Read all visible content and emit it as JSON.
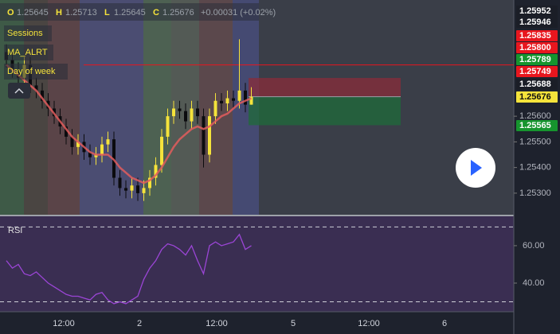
{
  "chart_data": {
    "type": "candlestick",
    "ylim": [
      1.25216,
      1.26053
    ],
    "yticks": [
      {
        "value": 1.253,
        "label": "1.25300"
      },
      {
        "value": 1.254,
        "label": "1.25400"
      },
      {
        "value": 1.255,
        "label": "1.25500"
      },
      {
        "value": 1.256,
        "label": "1.25600"
      }
    ],
    "up_color": "#f5e33b",
    "down_color": "#0b0b0e",
    "open": [
      1.2585,
      1.2582,
      1.2578,
      1.2575,
      1.258,
      1.2572,
      1.257,
      1.2566,
      1.2563,
      1.256,
      1.2556,
      1.2552,
      1.2548,
      1.255,
      1.2546,
      1.2544,
      1.2545,
      1.2549,
      1.2551,
      1.2536,
      1.2532,
      1.2531,
      1.2533,
      1.253,
      1.2532,
      1.2536,
      1.2541,
      1.2552,
      1.256,
      1.2563,
      1.2562,
      1.2558,
      1.2563,
      1.256,
      1.2545,
      1.256,
      1.2566,
      1.2565,
      1.2567,
      1.2566,
      1.257,
      1.25645
    ],
    "high": [
      1.2588,
      1.2585,
      1.2581,
      1.2583,
      1.2583,
      1.2575,
      1.2573,
      1.2569,
      1.2566,
      1.2563,
      1.2559,
      1.2555,
      1.2553,
      1.2553,
      1.2549,
      1.2548,
      1.2552,
      1.2554,
      1.2554,
      1.2539,
      1.2535,
      1.2536,
      1.2536,
      1.2535,
      1.2539,
      1.2544,
      1.2555,
      1.2563,
      1.2566,
      1.2566,
      1.2565,
      1.2566,
      1.2566,
      1.2563,
      1.2563,
      1.2569,
      1.2569,
      1.257,
      1.257,
      1.259,
      1.2573,
      1.25713
    ],
    "low": [
      1.2579,
      1.2575,
      1.2572,
      1.2572,
      1.2569,
      1.2567,
      1.2563,
      1.256,
      1.2557,
      1.2553,
      1.2549,
      1.2545,
      1.2545,
      1.2543,
      1.2541,
      1.2541,
      1.2542,
      1.2546,
      1.2533,
      1.2529,
      1.2528,
      1.2528,
      1.2527,
      1.2527,
      1.2529,
      1.2533,
      1.2538,
      1.2549,
      1.2557,
      1.2559,
      1.2555,
      1.2555,
      1.2557,
      1.254,
      1.2542,
      1.2557,
      1.2562,
      1.2562,
      1.2563,
      1.2563,
      1.25615,
      1.25645
    ],
    "close": [
      1.2582,
      1.2578,
      1.2575,
      1.258,
      1.2572,
      1.257,
      1.2566,
      1.2563,
      1.256,
      1.2556,
      1.2552,
      1.2548,
      1.255,
      1.2546,
      1.2544,
      1.2545,
      1.2549,
      1.2551,
      1.2536,
      1.2532,
      1.2531,
      1.2533,
      1.253,
      1.2532,
      1.2536,
      1.2541,
      1.2552,
      1.256,
      1.2563,
      1.2562,
      1.2558,
      1.2563,
      1.256,
      1.2545,
      1.256,
      1.2566,
      1.2565,
      1.2567,
      1.2566,
      1.257,
      1.25645,
      1.25676
    ],
    "legend_keys": [
      "O",
      "H",
      "L",
      "C"
    ],
    "change": "+0.00031 (+0.02%)",
    "overlays": [
      {
        "name": "MA_ALRT",
        "color": "#e35d5d",
        "values": [
          1.258,
          1.2578,
          1.2576,
          1.2574,
          1.2572,
          1.257,
          1.2567,
          1.2564,
          1.2561,
          1.2558,
          1.2555,
          1.2552,
          1.255,
          1.2548,
          1.2546,
          1.2545,
          1.2545,
          1.2545,
          1.2543,
          1.254,
          1.2538,
          1.2536,
          1.2535,
          1.2534,
          1.2535,
          1.2537,
          1.254,
          1.2544,
          1.2548,
          1.2551,
          1.2553,
          1.2555,
          1.2556,
          1.2555,
          1.2556,
          1.2558,
          1.256,
          1.2561,
          1.2563,
          1.2565,
          1.2566,
          1.2567
        ]
      }
    ],
    "indicator_labels": [
      "Sessions",
      "Day of week"
    ],
    "alert_line": 1.258,
    "position": {
      "entry": 1.25676,
      "stop": 1.25749,
      "target": 1.25565
    },
    "price_tags": [
      {
        "value": 1.25952,
        "label": "1.25952",
        "color": "#1b1e27"
      },
      {
        "value": 1.25946,
        "label": "1.25946",
        "color": "#1b1e27"
      },
      {
        "value": 1.25835,
        "label": "1.25835",
        "color": "#e8161e"
      },
      {
        "value": 1.258,
        "label": "1.25800",
        "color": "#e8161e"
      },
      {
        "value": 1.25789,
        "label": "1.25789",
        "color": "#16952e"
      },
      {
        "value": 1.25749,
        "label": "1.25749",
        "color": "#e8161e"
      },
      {
        "value": 1.25688,
        "label": "1.25688",
        "color": "#1b1e27"
      },
      {
        "value": 1.25676,
        "label": "1.25676",
        "color": "#f5e33b"
      },
      {
        "value": 1.25565,
        "label": "1.25565",
        "color": "#16952e"
      }
    ],
    "rsi": {
      "name": "RSI",
      "color": "#9b45d6",
      "ylim": [
        24.7,
        75.7
      ],
      "yticks": [
        {
          "value": 60,
          "label": "60.00"
        },
        {
          "value": 40,
          "label": "40.00"
        }
      ],
      "bands": [
        70,
        30
      ],
      "values": [
        52,
        48,
        50,
        45,
        44,
        46,
        43,
        40,
        38,
        36,
        34,
        33,
        33,
        32,
        31,
        34,
        35,
        31,
        29,
        30,
        29,
        31,
        33,
        42,
        48,
        52,
        58,
        61,
        60,
        58,
        55,
        60,
        52,
        45,
        60,
        62,
        60,
        61,
        62,
        66,
        58,
        60
      ]
    },
    "time_labels": [
      "12:00",
      "2",
      "12:00",
      "5",
      "12:00",
      "6"
    ]
  }
}
